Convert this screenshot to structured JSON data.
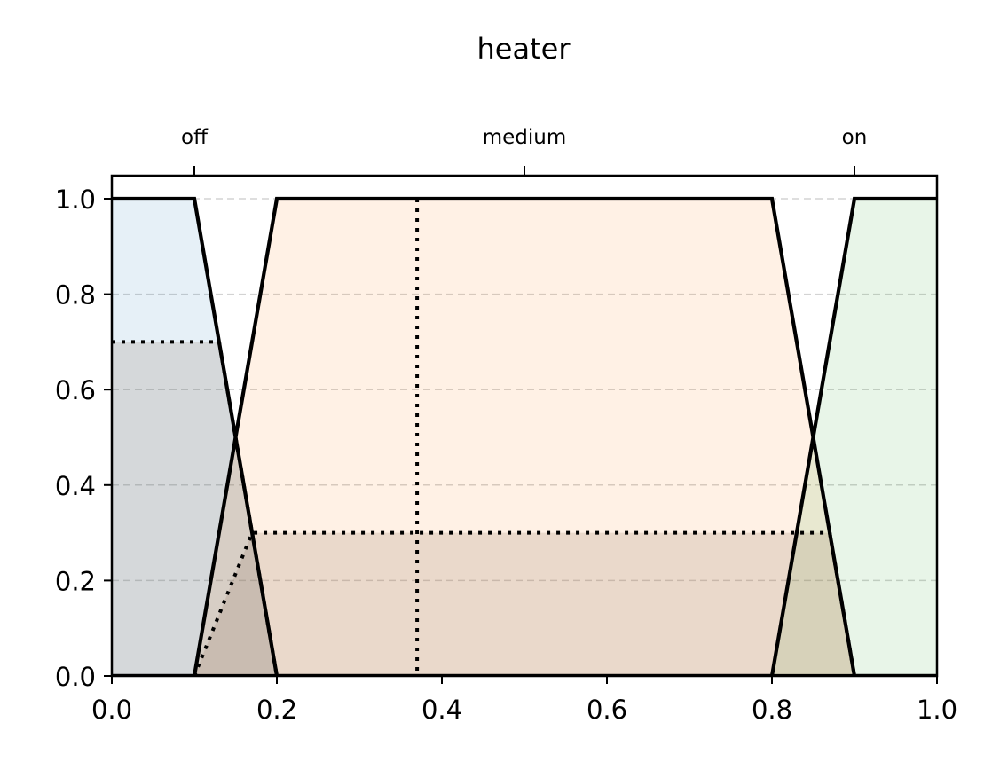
{
  "chart_data": {
    "type": "area",
    "title": "heater",
    "xlabel": "",
    "ylabel": "",
    "xlim": [
      0.0,
      1.0
    ],
    "ylim": [
      0.0,
      1.0
    ],
    "x_ticks": [
      "0.0",
      "0.2",
      "0.4",
      "0.6",
      "0.8",
      "1.0"
    ],
    "y_ticks": [
      "0.0",
      "0.2",
      "0.4",
      "0.6",
      "0.8",
      "1.0"
    ],
    "grid": "horizontal dashed",
    "top_axis_labels": [
      {
        "label": "off",
        "x": 0.1
      },
      {
        "label": "medium",
        "x": 0.5
      },
      {
        "label": "on",
        "x": 0.9
      }
    ],
    "membership_functions": [
      {
        "name": "off",
        "color": "#1f77b4",
        "points": [
          [
            0.0,
            1.0
          ],
          [
            0.1,
            1.0
          ],
          [
            0.2,
            0.0
          ],
          [
            1.0,
            0.0
          ]
        ]
      },
      {
        "name": "medium",
        "color": "#ff7f0e",
        "points": [
          [
            0.0,
            0.0
          ],
          [
            0.1,
            0.0
          ],
          [
            0.2,
            1.0
          ],
          [
            0.8,
            1.0
          ],
          [
            0.9,
            0.0
          ],
          [
            1.0,
            0.0
          ]
        ]
      },
      {
        "name": "on",
        "color": "#2ca02c",
        "points": [
          [
            0.0,
            0.0
          ],
          [
            0.8,
            0.0
          ],
          [
            0.9,
            1.0
          ],
          [
            1.0,
            1.0
          ]
        ]
      }
    ],
    "activated": [
      {
        "name": "off",
        "level": 0.7,
        "points": [
          [
            0.0,
            0.7
          ],
          [
            0.13,
            0.7
          ],
          [
            0.2,
            0.0
          ]
        ]
      },
      {
        "name": "medium",
        "level": 0.3,
        "points": [
          [
            0.1,
            0.0
          ],
          [
            0.17,
            0.3
          ],
          [
            0.87,
            0.3
          ],
          [
            0.9,
            0.0
          ]
        ]
      }
    ],
    "crisp_output": 0.37
  }
}
